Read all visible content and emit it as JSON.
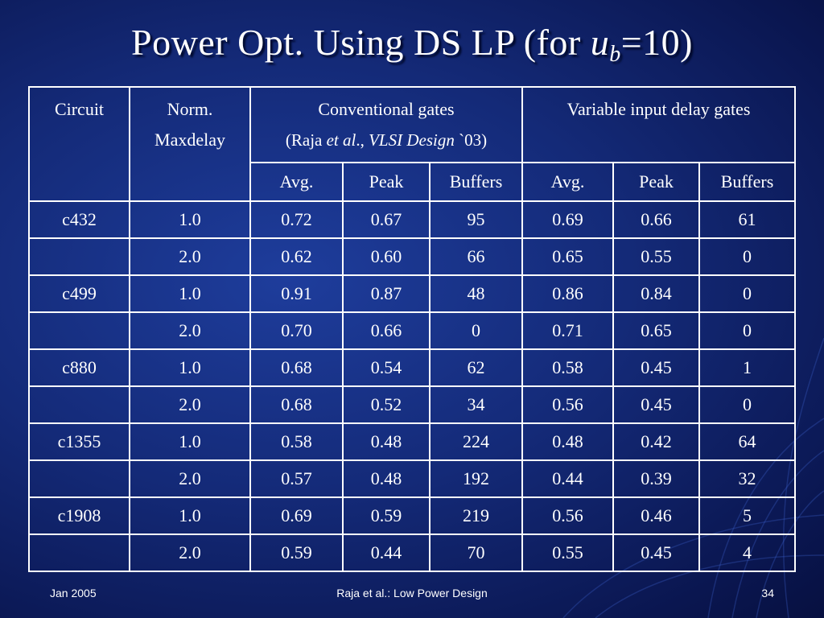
{
  "slide": {
    "title_prefix": "Power Opt. Using DS LP (for ",
    "title_var": "u",
    "title_sub": "b",
    "title_suffix": "=10)"
  },
  "table": {
    "header": {
      "circuit": "Circuit",
      "norm_line1": "Norm.",
      "norm_line2": "Maxdelay",
      "conventional": "Conventional gates",
      "conventional_ref_pre": "(Raja ",
      "conventional_ref_etal": "et al",
      "conventional_ref_mid": "., ",
      "conventional_ref_journal": "VLSI Design",
      "conventional_ref_post": " `03)",
      "variable": "Variable input delay gates",
      "avg": "Avg.",
      "peak": "Peak",
      "buffers": "Buffers"
    },
    "rows": [
      [
        "c432",
        "1.0",
        "0.72",
        "0.67",
        "95",
        "0.69",
        "0.66",
        "61"
      ],
      [
        "",
        "2.0",
        "0.62",
        "0.60",
        "66",
        "0.65",
        "0.55",
        "0"
      ],
      [
        "c499",
        "1.0",
        "0.91",
        "0.87",
        "48",
        "0.86",
        "0.84",
        "0"
      ],
      [
        "",
        "2.0",
        "0.70",
        "0.66",
        "0",
        "0.71",
        "0.65",
        "0"
      ],
      [
        "c880",
        "1.0",
        "0.68",
        "0.54",
        "62",
        "0.58",
        "0.45",
        "1"
      ],
      [
        "",
        "2.0",
        "0.68",
        "0.52",
        "34",
        "0.56",
        "0.45",
        "0"
      ],
      [
        "c1355",
        "1.0",
        "0.58",
        "0.48",
        "224",
        "0.48",
        "0.42",
        "64"
      ],
      [
        "",
        "2.0",
        "0.57",
        "0.48",
        "192",
        "0.44",
        "0.39",
        "32"
      ],
      [
        "c1908",
        "1.0",
        "0.69",
        "0.59",
        "219",
        "0.56",
        "0.46",
        "5"
      ],
      [
        "",
        "2.0",
        "0.59",
        "0.44",
        "70",
        "0.55",
        "0.45",
        "4"
      ]
    ]
  },
  "footer": {
    "date": "Jan 2005",
    "center": "Raja et al.: Low Power Design",
    "page": "34"
  },
  "colors": {
    "background": "#142a78",
    "text": "#ffffff",
    "grid": "#ffffff"
  }
}
